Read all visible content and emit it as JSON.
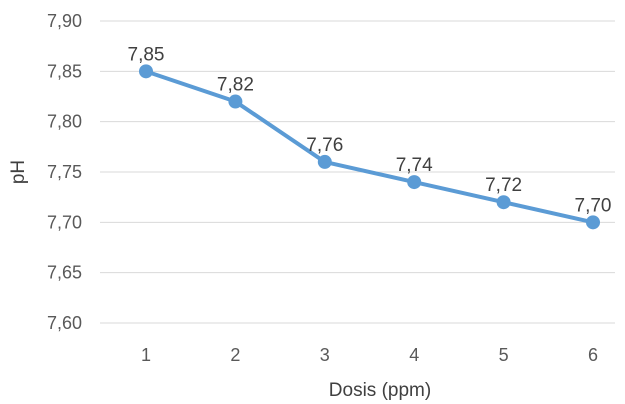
{
  "chart_data": {
    "type": "line",
    "x": [
      1,
      2,
      3,
      4,
      5,
      6
    ],
    "categories": [
      "1",
      "2",
      "3",
      "4",
      "5",
      "6"
    ],
    "series": [
      {
        "values": [
          7.85,
          7.82,
          7.76,
          7.74,
          7.72,
          7.7
        ]
      }
    ],
    "data_labels": [
      "7,85",
      "7,82",
      "7,76",
      "7,74",
      "7,72",
      "7,70"
    ],
    "xlabel": "Dosis (ppm)",
    "ylabel": "pH",
    "ylim": [
      7.6,
      7.9
    ],
    "yticks": [
      7.6,
      7.65,
      7.7,
      7.75,
      7.8,
      7.85,
      7.9
    ],
    "ytick_labels": [
      "7,60",
      "7,65",
      "7,70",
      "7,75",
      "7,80",
      "7,85",
      "7,90"
    ],
    "grid": true,
    "legend": "none",
    "series_color": "#5b9bd5"
  }
}
